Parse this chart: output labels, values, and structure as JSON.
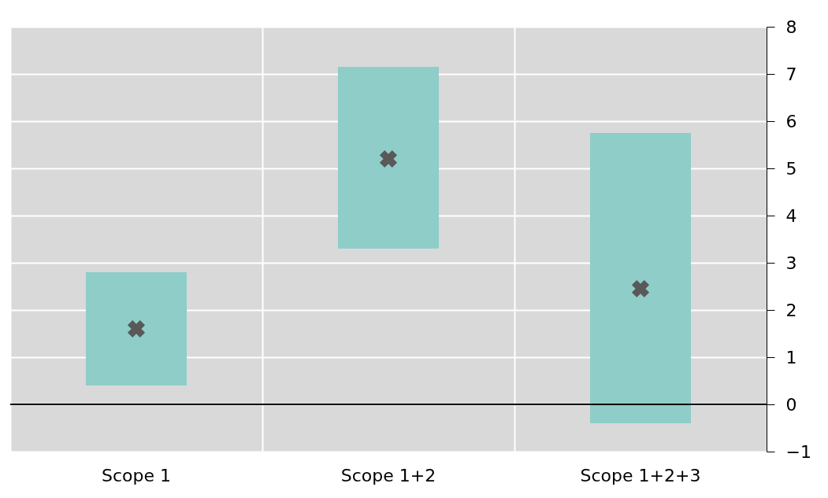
{
  "chart_data": {
    "type": "bar",
    "categories": [
      "Scope 1",
      "Scope 1+2",
      "Scope 1+2+3"
    ],
    "series": [
      {
        "color": "#8fcdc8",
        "base": [
          0.4,
          3.3,
          -0.4
        ],
        "values": [
          2.4,
          3.85,
          6.15
        ]
      },
      {
        "type": "scatter",
        "color": "#595959",
        "marker": "cross",
        "x": [
          "Scope 1",
          "Scope 1+2",
          "Scope 1+2+3"
        ],
        "values": [
          1.6,
          5.2,
          2.45
        ]
      }
    ],
    "ylim": [
      -1,
      8
    ],
    "yticks": [
      -1,
      0,
      1,
      2,
      3,
      4,
      5,
      6,
      7,
      8
    ],
    "grid": true,
    "ref_lines": [
      {
        "axis": "y",
        "value": 0,
        "color": "#000000"
      }
    ]
  }
}
